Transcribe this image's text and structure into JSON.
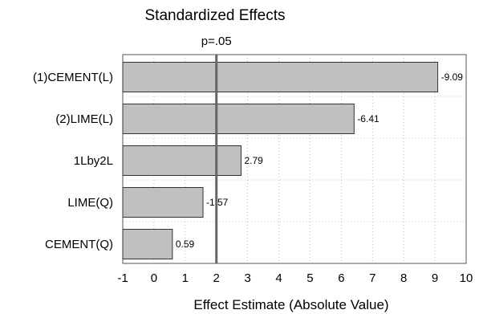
{
  "chart_data": {
    "type": "bar",
    "orientation": "horizontal",
    "title": "Standardized Effects",
    "xlabel": "Effect Estimate (Absolute Value)",
    "ylabel": "",
    "categories": [
      "(1)CEMENT(L)",
      "(2)LIME(L)",
      "1Lby2L",
      "LIME(Q)",
      "CEMENT(Q)"
    ],
    "values": [
      9.09,
      6.41,
      2.79,
      1.57,
      0.59
    ],
    "data_labels": [
      "-9.09",
      "-6.41",
      "2.79",
      "-1.57",
      "0.59"
    ],
    "xlim": [
      -1,
      10
    ],
    "xticks": [
      "-1",
      "0",
      "1",
      "2",
      "3",
      "4",
      "5",
      "6",
      "7",
      "8",
      "9",
      "10"
    ],
    "reference_line": {
      "value": 2,
      "label": "p=.05"
    },
    "grid": true,
    "bar_color": "#c0c0c0"
  }
}
